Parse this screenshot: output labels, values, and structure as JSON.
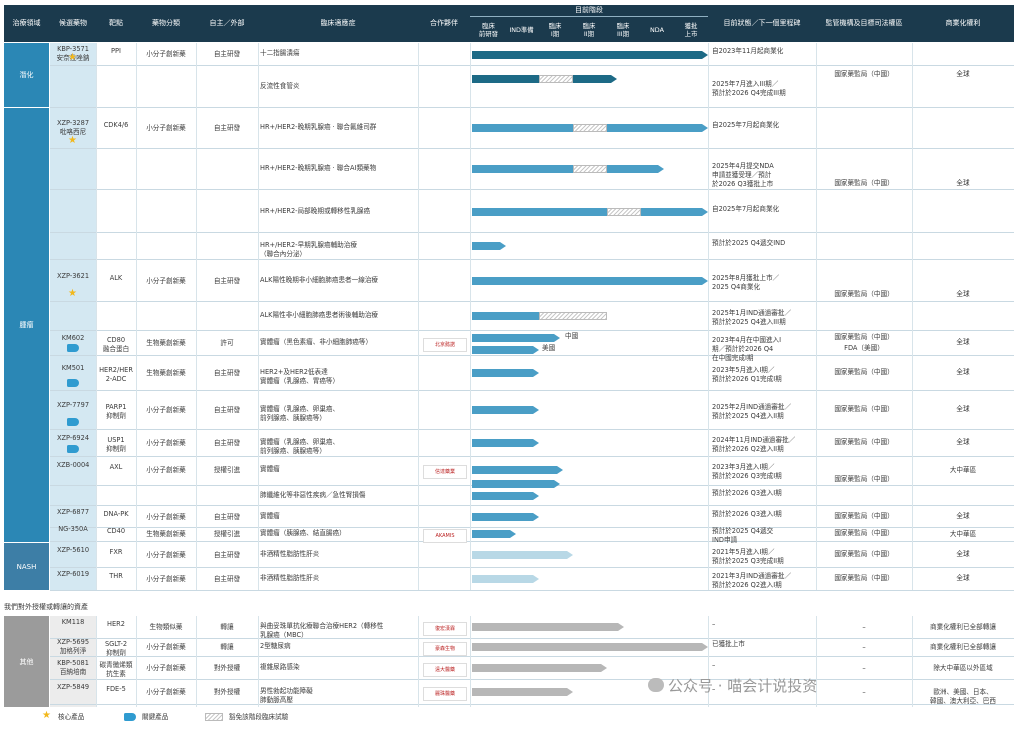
{
  "colors": {
    "header": "#1b3a4d",
    "dark_teal": "#1d6a86",
    "mid_blue": "#4a9ec6",
    "light_blue": "#b8d8e6",
    "gray_bar": "#b7b7b7",
    "side_blue": "#2b87b5",
    "side_dark": "#3d7ea6",
    "other_gray": "#9b9b9b",
    "star": "#f2b81c"
  },
  "header": {
    "area": "治療領域",
    "code": "候選藥物",
    "target": "靶點",
    "mol": "藥物分類",
    "own": "自主／外部",
    "ind": "臨床適應症",
    "partner": "合作夥伴",
    "stage_title": "目前階段",
    "stages": [
      "臨床\n前研發",
      "IND準備",
      "臨床\nI期",
      "臨床\nII期",
      "臨床\nIII期",
      "NDA",
      "獲批\n上市"
    ],
    "milestone": "目前狀態／下一個里程碑",
    "reg": "監管機構及目標司法權區",
    "rights": "商業化權利"
  },
  "areas": {
    "a1": "潛化",
    "a2": "腫瘤",
    "a3": "NASH",
    "a4": "其他"
  },
  "section_other": "我們對外授權或轉讓的資產",
  "rows": [
    {
      "code": "KBP-3571\n安奈拉唑鈉",
      "target": "PPI",
      "mol": "小分子創新藥",
      "own": "自主研發",
      "ind": "十二指腸潰瘍",
      "ms": "自2023年11月起商業化"
    },
    {
      "ind": "反流性食管炎",
      "ms": "2025年7月進入III期／\n預計於2026 Q4完成III期"
    },
    {
      "code": "XZP-3287\n吡咯西尼",
      "target": "CDK4/6",
      "mol": "小分子創新藥",
      "own": "自主研發",
      "ind": "HR+/HER2-晚期乳腺癌 · 聯合氟維司群",
      "ms": "自2025年7月起商業化"
    },
    {
      "ind": "HR+/HER2-晚期乳腺癌 · 聯合AI類藥物",
      "ms": "2025年4月提交NDA\n申請並獲受理／預計\n於2026 Q3獲批上市"
    },
    {
      "ind": "HR+/HER2-局部晚期或轉移性乳腺癌",
      "ms": "自2025年7月起商業化"
    },
    {
      "ind": "HR+/HER2-早期乳腺癌輔助治療\n（聯合內分泌）",
      "ms": "預計於2025 Q4遞交IND"
    },
    {
      "code": "XZP-3621",
      "target": "ALK",
      "mol": "小分子創新藥",
      "own": "自主研發",
      "ind": "ALK陽性晚期非小細胞肺癌患者一線治療",
      "ms": "2025年8月獲批上市／\n2025 Q4商業化"
    },
    {
      "ind": "ALK陽性非小細胞肺癌患者術後輔助治療",
      "ms": "2025年1月IND通過審批／\n預計於2025 Q4進入III期"
    },
    {
      "code": "KM602\n",
      "target": "CD80\n融合蛋白",
      "mol": "生物藥創新藥",
      "own": "許可",
      "ind": "實體瘤（黑色素瘤、非小細胞肺癌等）",
      "partner": "北京懿諾",
      "ms": "2023年4月在中國進入I\n期／預計於2026 Q4\n在中國完成I期",
      "tag1": "中國",
      "tag2": "美國",
      "reg1": "國家藥監局（中國）",
      "reg2": "FDA（美國）"
    },
    {
      "code": "KM501",
      "target": "HER2/HER\n2-ADC",
      "mol": "生物藥創新藥",
      "own": "自主研發",
      "ind": "HER2+及HER2低表達\n實體瘤（乳腺癌、胃癌等）",
      "ms": "2023年5月進入I期／\n預計於2026 Q1完成I期"
    },
    {
      "code": "XZP-7797",
      "target": "PARP1\n抑制劑",
      "mol": "小分子創新藥",
      "own": "自主研發",
      "ind": "實體瘤（乳腺癌、卵巢癌、\n前列腺癌、胰腺癌等）",
      "ms": "2025年2月IND通過審批／\n預計於2025 Q4進入II期"
    },
    {
      "code": "XZP-6924",
      "target": "USP1\n抑制劑",
      "mol": "小分子創新藥",
      "own": "自主研發",
      "ind": "實體瘤（乳腺癌、卵巢癌、\n前列腺癌、胰腺癌等）",
      "ms": "2024年11月IND通過審批／\n預計於2026 Q2進入II期"
    },
    {
      "code": "XZB-0004",
      "target": "AXL",
      "mol": "小分子創新藥",
      "own": "授權引進",
      "ind": "實體瘤",
      "partner": "信達藥業",
      "ms": "2023年3月進入I期／\n預計於2026 Q3完成I期",
      "rights": "大中華區"
    },
    {
      "ind": "肺纖維化等非惡性疾病／急性腎損傷",
      "ms": "預計於2026 Q3進入I期"
    },
    {
      "code": "XZP-6877",
      "target": "DNA-PK",
      "mol": "小分子創新藥",
      "own": "自主研發",
      "ind": "實體瘤",
      "ms": "預計於2026 Q3進入I期"
    },
    {
      "code": "NG-350A",
      "target": "CD40",
      "mol": "生物藥創新藥",
      "own": "授權引進",
      "ind": "實體瘤（胰腺癌、結直腸癌）",
      "partner": "AKAMIS",
      "ms": "預計於2025 Q4遞交\nIND申請",
      "rights": "大中華區"
    },
    {
      "code": "XZP-5610",
      "target": "FXR",
      "mol": "小分子創新藥",
      "own": "自主研發",
      "ind": "非酒精性脂肪性肝炎",
      "ms": "2021年5月進入I期／\n預計於2025 Q3完成II期"
    },
    {
      "code": "XZP-6019",
      "target": "THR",
      "mol": "小分子創新藥",
      "own": "自主研發",
      "ind": "非酒精性脂肪性肝炎",
      "ms": "2021年3月IND通過審批／\n預計於2026 Q2進入I期"
    },
    {
      "code": "KM118",
      "target": "HER2",
      "mol": "生物類似藥",
      "own": "轉讓",
      "ind": "與曲妥珠單抗化療聯合治療HER2（轉移性\n乳腺癌（MBC）",
      "partner": "復宏漢霖",
      "ms": "–",
      "reg": "–",
      "rights": "商業化權利已全部轉讓"
    },
    {
      "code": "XZP-5695\n加格列淨",
      "target": "SGLT-2\n抑制劑",
      "mol": "小分子創新藥",
      "own": "轉讓",
      "ind": "2型糖尿病",
      "partner": "豪森生物",
      "ms": "已獲批上市",
      "reg": "–",
      "rights": "商業化權利已全部轉讓"
    },
    {
      "code": "KBP-5081\n百納培南",
      "target": "碳青黴烯類\n抗生素",
      "mol": "小分子創新藥",
      "own": "對外授權",
      "ind": "複雜尿路感染",
      "partner": "遠大醫藥",
      "ms": "–",
      "reg": "–",
      "rights": "除大中華區以外區域"
    },
    {
      "code": "XZP-5849",
      "target": "FDE-5",
      "mol": "小分子創新藥",
      "own": "對外授權",
      "ind": "男性勃起功能障礙\n肺動脈高壓",
      "partner": "麗珠醫藥",
      "ms": "–",
      "reg": "–",
      "rights": "歐洲、美國、日本、\n韓國、澳大利亞、巴西"
    }
  ],
  "reg_cn": "國家藥監局（中國）",
  "rights_global": "全球",
  "legend": {
    "core": "核心產品",
    "key": "關鍵產品",
    "hatch": "豁免該階段臨床試驗"
  },
  "watermark": "公众号 · 喵会计说投资"
}
